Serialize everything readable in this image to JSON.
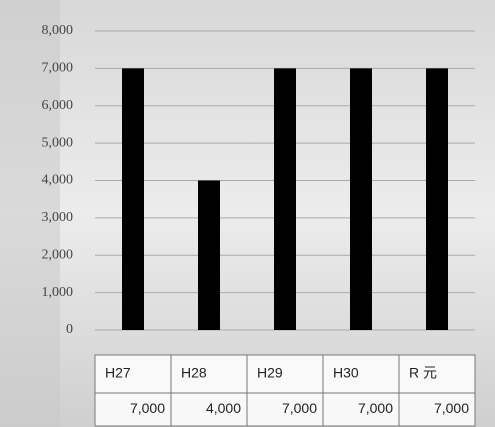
{
  "chart_data": {
    "type": "bar",
    "categories": [
      "H27",
      "H28",
      "H29",
      "H30",
      "R 元"
    ],
    "values": [
      7000,
      4000,
      7000,
      7000,
      7000
    ],
    "value_labels": [
      "7,000",
      "4,000",
      "7,000",
      "7,000",
      "7,000"
    ],
    "color": "#000000",
    "ylim": [
      0,
      8000
    ],
    "yticks": [
      0,
      {
        "value": 1000,
        "label": "1,000"
      },
      {
        "value": 2000,
        "label": "2,000"
      },
      {
        "value": 3000,
        "label": "3,000"
      },
      {
        "value": 4000,
        "label": "4,000"
      },
      {
        "value": 5000,
        "label": "5,000"
      },
      {
        "value": 6000,
        "label": "6,000"
      },
      {
        "value": 7000,
        "label": "7,000"
      },
      {
        "value": 8000,
        "label": "8,000"
      }
    ],
    "grid": true
  }
}
